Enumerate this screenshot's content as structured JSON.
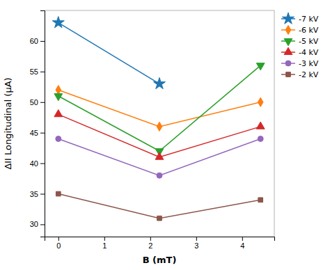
{
  "chart_data": {
    "type": "line",
    "xlabel": "B (mT)",
    "ylabel": "ΔII Longitudinal (μA)",
    "x": [
      0,
      2.2,
      4.4
    ],
    "series": [
      {
        "name": "-7 kV",
        "values": [
          63,
          53,
          null
        ],
        "marker": "star",
        "line_style": "solid"
      },
      {
        "name": "-6 kV",
        "values": [
          52,
          46,
          50
        ],
        "marker": "diamond",
        "line_style": "solid"
      },
      {
        "name": "-5 kV",
        "values": [
          51,
          42,
          56
        ],
        "marker": "triangle-down",
        "line_style": "solid"
      },
      {
        "name": "-4 kV",
        "values": [
          48,
          41,
          46
        ],
        "marker": "triangle-up",
        "line_style": "solid"
      },
      {
        "name": "-3 kV",
        "values": [
          44,
          38,
          44
        ],
        "marker": "circle",
        "line_style": "solid"
      },
      {
        "name": "-2 kV",
        "values": [
          35,
          31,
          34
        ],
        "marker": "square",
        "line_style": "solid"
      }
    ],
    "xlim": [
      -0.3,
      4.7
    ],
    "xticks": [
      0,
      1,
      2,
      3,
      4
    ],
    "ylim": [
      28,
      65
    ],
    "yticks": [
      30,
      35,
      40,
      45,
      50,
      55,
      60
    ],
    "legend": "upper right",
    "grid": false
  }
}
